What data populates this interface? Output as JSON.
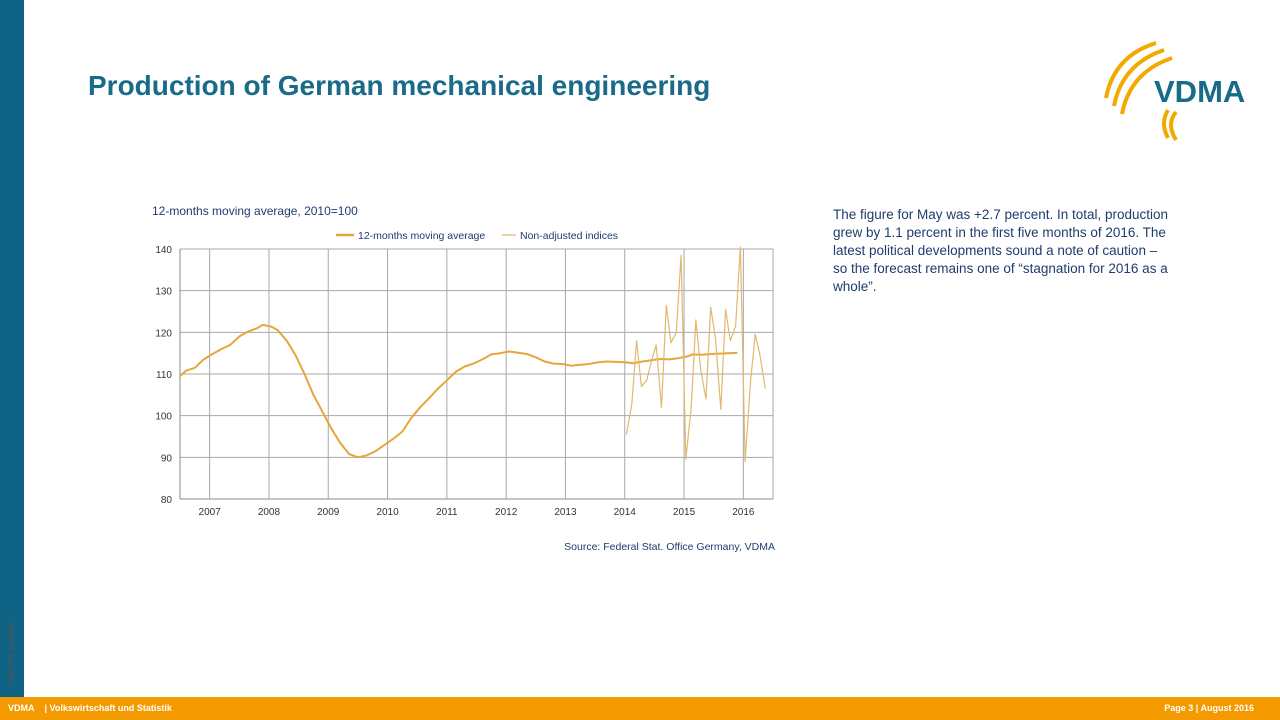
{
  "header": {
    "title": "Production of German mechanical engineering",
    "logo_text": "VDMA"
  },
  "sidebar": {
    "label": "Monthly bulletin"
  },
  "summary": {
    "text": "The figure for May was +2.7 percent. In total, production grew by 1.1 percent in the first five months of 2016. The latest political developments sound a note of caution – so the forecast remains one of “stagnation for 2016 as a whole”."
  },
  "footer": {
    "brand": "VDMA",
    "department": "| Volkswirtschaft und Statistik",
    "page": "Page 3 | August 2016"
  },
  "colors": {
    "accent_blue": "#0f6384",
    "title_blue": "#1a6b8a",
    "footer_orange": "#f29a00",
    "moving_average": "#e6a63c",
    "non_adjusted": "#e2b86e",
    "grid": "#999999"
  },
  "chart_data": {
    "type": "line",
    "title": "12-months moving average, 2010=100",
    "source": "Source: Federal Stat. Office Germany, VDMA",
    "legend_position": "top-right",
    "grid": true,
    "xlim": [
      2006.5,
      2016.5
    ],
    "ylim": [
      80,
      140
    ],
    "yticks": [
      80,
      90,
      100,
      110,
      120,
      130,
      140
    ],
    "year_labels": [
      "2007",
      "2008",
      "2009",
      "2010",
      "2011",
      "2012",
      "2013",
      "2014",
      "2015",
      "2016"
    ],
    "series": [
      {
        "name": "12-months moving average",
        "color": "#e6a63c",
        "points": [
          [
            2006.5,
            109.5
          ],
          [
            2006.6,
            110.8
          ],
          [
            2006.75,
            111.5
          ],
          [
            2006.9,
            113.5
          ],
          [
            2007.05,
            114.8
          ],
          [
            2007.2,
            116
          ],
          [
            2007.35,
            117
          ],
          [
            2007.5,
            119
          ],
          [
            2007.65,
            120.2
          ],
          [
            2007.8,
            121
          ],
          [
            2007.9,
            121.8
          ],
          [
            2008.05,
            121.3
          ],
          [
            2008.15,
            120.5
          ],
          [
            2008.3,
            118
          ],
          [
            2008.45,
            114.5
          ],
          [
            2008.6,
            110
          ],
          [
            2008.75,
            105
          ],
          [
            2008.9,
            101
          ],
          [
            2009.05,
            97
          ],
          [
            2009.2,
            93.5
          ],
          [
            2009.35,
            90.8
          ],
          [
            2009.5,
            90
          ],
          [
            2009.65,
            90.5
          ],
          [
            2009.8,
            91.5
          ],
          [
            2009.95,
            93
          ],
          [
            2010.1,
            94.5
          ],
          [
            2010.25,
            96.2
          ],
          [
            2010.4,
            99.5
          ],
          [
            2010.55,
            102
          ],
          [
            2010.7,
            104.2
          ],
          [
            2010.85,
            106.5
          ],
          [
            2011.0,
            108.5
          ],
          [
            2011.15,
            110.5
          ],
          [
            2011.3,
            111.8
          ],
          [
            2011.45,
            112.5
          ],
          [
            2011.6,
            113.5
          ],
          [
            2011.75,
            114.7
          ],
          [
            2011.9,
            115
          ],
          [
            2012.05,
            115.4
          ],
          [
            2012.2,
            115.1
          ],
          [
            2012.35,
            114.8
          ],
          [
            2012.5,
            114
          ],
          [
            2012.65,
            113
          ],
          [
            2012.8,
            112.5
          ],
          [
            2012.95,
            112.4
          ],
          [
            2013.1,
            112
          ],
          [
            2013.25,
            112.2
          ],
          [
            2013.4,
            112.4
          ],
          [
            2013.55,
            112.8
          ],
          [
            2013.7,
            113
          ],
          [
            2013.85,
            112.9
          ],
          [
            2014.0,
            112.8
          ],
          [
            2014.15,
            112.6
          ],
          [
            2014.3,
            113
          ],
          [
            2014.45,
            113.3
          ],
          [
            2014.6,
            113.6
          ],
          [
            2014.75,
            113.5
          ],
          [
            2014.9,
            113.8
          ],
          [
            2015.05,
            114.2
          ],
          [
            2015.15,
            114.7
          ],
          [
            2015.3,
            114.6
          ],
          [
            2015.45,
            114.8
          ],
          [
            2015.6,
            114.9
          ],
          [
            2015.75,
            115
          ],
          [
            2015.9,
            115.1
          ]
        ]
      },
      {
        "name": "Non-adjusted indices",
        "color": "#e2b86e",
        "points": [
          [
            2014.03,
            95.5
          ],
          [
            2014.12,
            103
          ],
          [
            2014.2,
            118
          ],
          [
            2014.28,
            107
          ],
          [
            2014.37,
            108.5
          ],
          [
            2014.45,
            113
          ],
          [
            2014.53,
            117
          ],
          [
            2014.62,
            102
          ],
          [
            2014.7,
            126.5
          ],
          [
            2014.78,
            117.5
          ],
          [
            2014.87,
            120
          ],
          [
            2014.95,
            138.5
          ],
          [
            2015.03,
            89.5
          ],
          [
            2015.12,
            102
          ],
          [
            2015.2,
            123
          ],
          [
            2015.28,
            111
          ],
          [
            2015.37,
            104
          ],
          [
            2015.45,
            126
          ],
          [
            2015.53,
            118.5
          ],
          [
            2015.62,
            101.5
          ],
          [
            2015.7,
            125.5
          ],
          [
            2015.78,
            118
          ],
          [
            2015.87,
            121.5
          ],
          [
            2015.95,
            140.5
          ],
          [
            2016.03,
            89
          ],
          [
            2016.12,
            108
          ],
          [
            2016.2,
            119.5
          ],
          [
            2016.28,
            114.5
          ],
          [
            2016.37,
            106.5
          ]
        ]
      }
    ]
  }
}
